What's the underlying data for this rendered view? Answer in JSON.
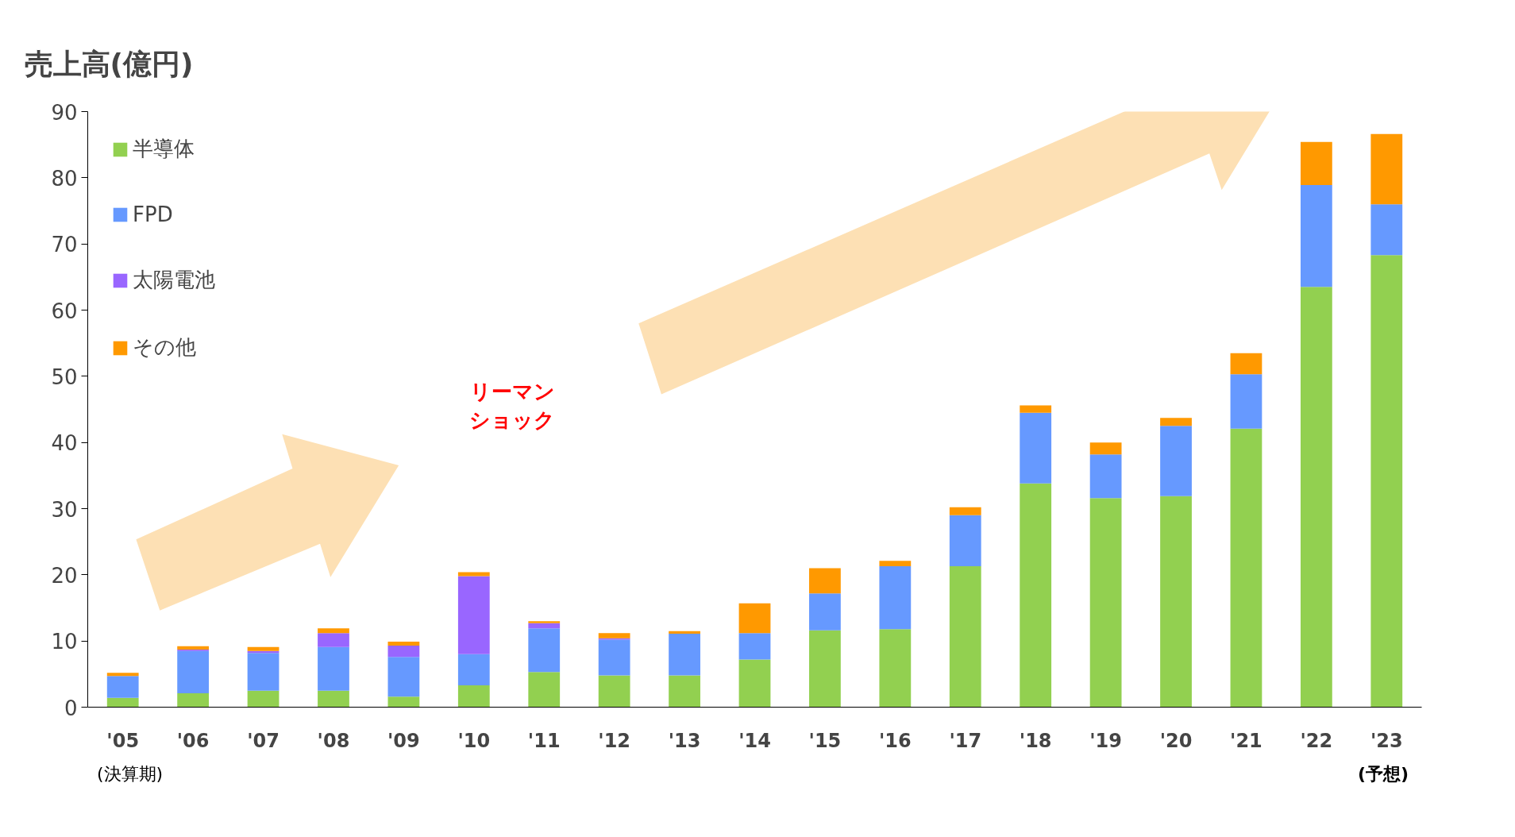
{
  "chart_data": {
    "type": "bar",
    "stacked": true,
    "title": "売上高(億円)",
    "categories": [
      "'05",
      "'06",
      "'07",
      "'08",
      "'09",
      "'10",
      "'11",
      "'12",
      "'13",
      "'14",
      "'15",
      "'16",
      "'17",
      "'18",
      "'19",
      "'20",
      "'21",
      "'22",
      "'23"
    ],
    "series": [
      {
        "name": "半導体",
        "color": "#92d050",
        "values": [
          1.4,
          2.1,
          2.5,
          2.5,
          1.6,
          3.3,
          5.3,
          4.8,
          4.8,
          7.2,
          11.6,
          11.8,
          21.3,
          33.8,
          31.6,
          31.9,
          42.1,
          63.5,
          68.3
        ]
      },
      {
        "name": "FPD",
        "color": "#6699ff",
        "values": [
          3.3,
          6.4,
          5.7,
          6.6,
          6.0,
          4.7,
          6.6,
          5.4,
          6.3,
          4.0,
          5.6,
          9.5,
          7.7,
          10.7,
          6.6,
          10.6,
          8.2,
          15.4,
          7.7
        ]
      },
      {
        "name": "太陽電池",
        "color": "#9966ff",
        "values": [
          0,
          0.2,
          0.3,
          2.1,
          1.7,
          11.8,
          0.8,
          0.2,
          0,
          0,
          0,
          0,
          0,
          0,
          0,
          0,
          0,
          0,
          0
        ]
      },
      {
        "name": "その他",
        "color": "#ff9900",
        "values": [
          0.5,
          0.5,
          0.6,
          0.7,
          0.6,
          0.6,
          0.3,
          0.8,
          0.4,
          4.5,
          3.8,
          0.8,
          1.2,
          1.1,
          1.8,
          1.2,
          3.2,
          6.5,
          10.6
        ]
      }
    ],
    "ylim": [
      0,
      90
    ],
    "yticks": [
      0,
      10,
      20,
      30,
      40,
      50,
      60,
      70,
      80,
      90
    ],
    "grid": false,
    "legend": "top left",
    "annotations": [
      "リーマンショック",
      "(決算期)",
      "(予想)"
    ]
  }
}
